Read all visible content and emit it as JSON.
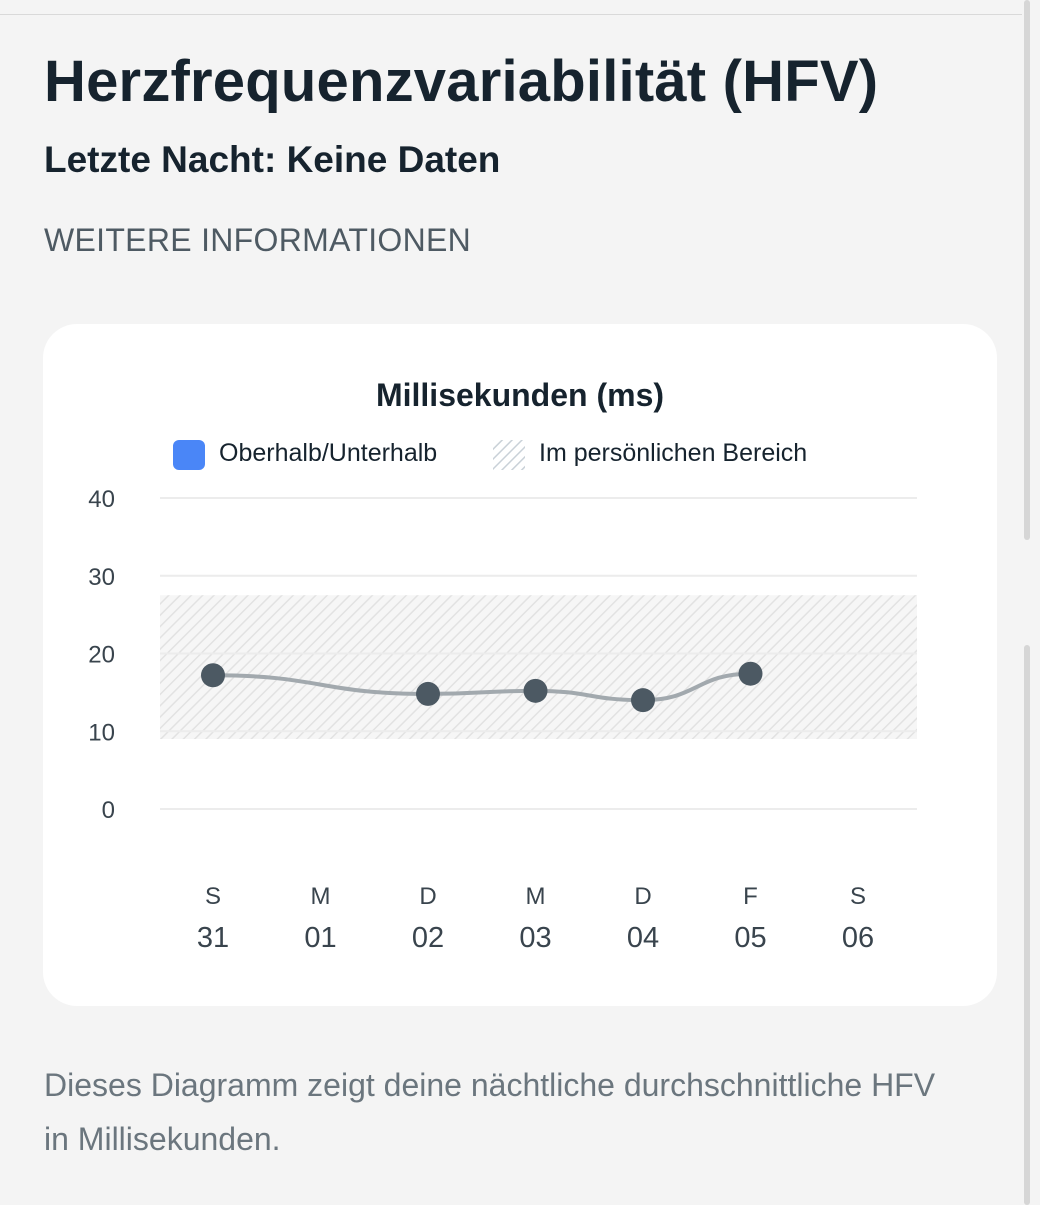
{
  "header": {
    "title": "Herzfrequenzvariabilität (HFV)",
    "subtitle": "Letzte Nacht: Keine Daten",
    "more_info_link": "WEITERE INFORMATIONEN"
  },
  "legend": {
    "items": [
      {
        "label": "Oberhalb/Unterhalb",
        "swatch": "solid",
        "color": "#4a86f7"
      },
      {
        "label": "Im persönlichen Bereich",
        "swatch": "hatched",
        "color": "#c9d1d8"
      }
    ]
  },
  "chart_data": {
    "type": "line",
    "title": "Millisekunden (ms)",
    "xlabel": "",
    "ylabel": "",
    "ylim": [
      0,
      40
    ],
    "yticks": [
      0,
      10,
      20,
      30,
      40
    ],
    "grid": true,
    "legend_position": "top",
    "x_weekdays": [
      "S",
      "M",
      "D",
      "M",
      "D",
      "F",
      "S"
    ],
    "x_days": [
      "31",
      "01",
      "02",
      "03",
      "04",
      "05",
      "06"
    ],
    "personal_range": [
      9,
      27.5
    ],
    "series": [
      {
        "values": [
          17.2,
          null,
          14.8,
          15.2,
          14,
          17.4,
          null
        ],
        "color": "#4c5963",
        "line_color": "#a2a9ae"
      }
    ]
  },
  "footer": {
    "description": "Dieses Diagramm zeigt deine nächtliche durchschnittliche HFV in Millisekunden."
  }
}
